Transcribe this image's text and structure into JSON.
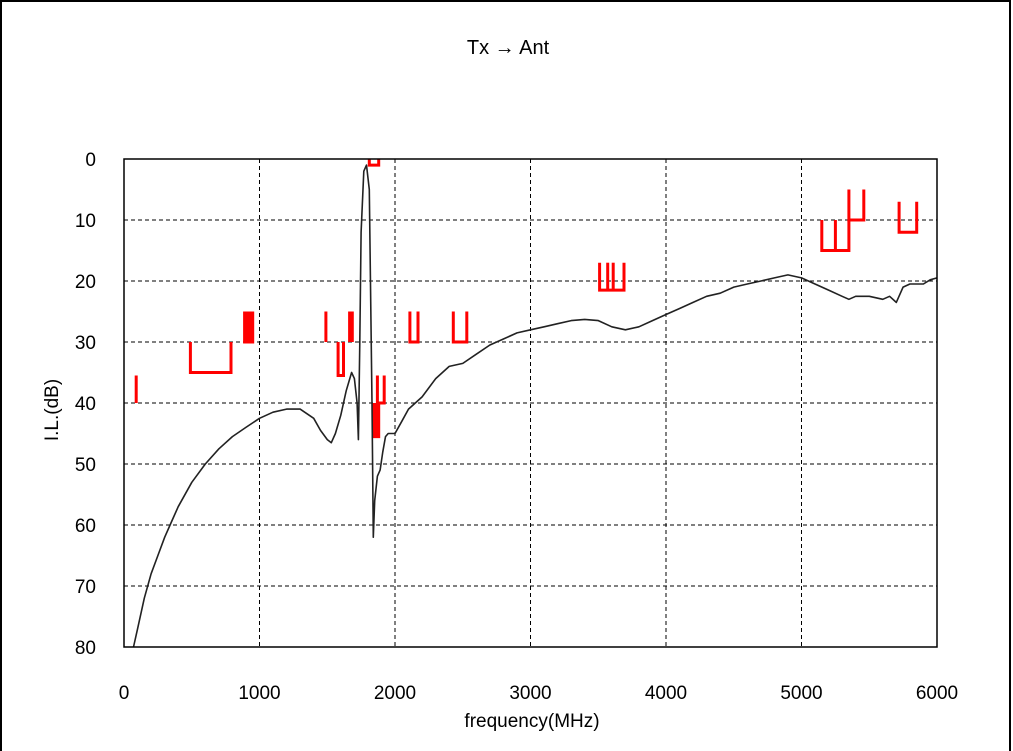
{
  "chart_data": {
    "type": "line",
    "title": "Tx → Ant",
    "xlabel": "frequency(MHz)",
    "ylabel": "I.L.(dB)",
    "xlim": [
      0,
      6000
    ],
    "ylim": [
      0,
      80
    ],
    "y_inverted": true,
    "grid": true,
    "grid_style": "dashed",
    "x_ticks": [
      "0",
      "1000",
      "2000",
      "3000",
      "4000",
      "5000",
      "6000"
    ],
    "y_ticks": [
      "0",
      "10",
      "20",
      "30",
      "40",
      "50",
      "60",
      "70",
      "80"
    ],
    "x_tick_values": [
      0,
      1000,
      2000,
      3000,
      4000,
      5000,
      6000
    ],
    "y_tick_values": [
      0,
      10,
      20,
      30,
      40,
      50,
      60,
      70,
      80
    ],
    "series": [
      {
        "color": "#222222",
        "points": [
          [
            70,
            80
          ],
          [
            100,
            77
          ],
          [
            150,
            72
          ],
          [
            200,
            68
          ],
          [
            250,
            65
          ],
          [
            300,
            62
          ],
          [
            350,
            59.5
          ],
          [
            400,
            57
          ],
          [
            500,
            53
          ],
          [
            600,
            50
          ],
          [
            700,
            47.5
          ],
          [
            800,
            45.5
          ],
          [
            900,
            44
          ],
          [
            1000,
            42.5
          ],
          [
            1100,
            41.5
          ],
          [
            1200,
            41
          ],
          [
            1300,
            41
          ],
          [
            1400,
            42.5
          ],
          [
            1450,
            44.5
          ],
          [
            1500,
            46
          ],
          [
            1530,
            46.5
          ],
          [
            1560,
            45
          ],
          [
            1600,
            42
          ],
          [
            1640,
            38
          ],
          [
            1680,
            35
          ],
          [
            1700,
            36
          ],
          [
            1720,
            40
          ],
          [
            1730,
            46
          ],
          [
            1740,
            30
          ],
          [
            1750,
            12
          ],
          [
            1770,
            2
          ],
          [
            1790,
            1
          ],
          [
            1810,
            5
          ],
          [
            1830,
            40
          ],
          [
            1840,
            62
          ],
          [
            1850,
            56
          ],
          [
            1870,
            52
          ],
          [
            1890,
            51
          ],
          [
            1910,
            48
          ],
          [
            1930,
            45.5
          ],
          [
            1950,
            45
          ],
          [
            2000,
            45
          ],
          [
            2050,
            43
          ],
          [
            2100,
            41
          ],
          [
            2200,
            39
          ],
          [
            2300,
            36
          ],
          [
            2400,
            34
          ],
          [
            2500,
            33.5
          ],
          [
            2600,
            32
          ],
          [
            2700,
            30.5
          ],
          [
            2800,
            29.5
          ],
          [
            2900,
            28.5
          ],
          [
            3000,
            28
          ],
          [
            3100,
            27.5
          ],
          [
            3200,
            27
          ],
          [
            3300,
            26.5
          ],
          [
            3400,
            26.3
          ],
          [
            3500,
            26.5
          ],
          [
            3600,
            27.5
          ],
          [
            3700,
            28
          ],
          [
            3800,
            27.5
          ],
          [
            3900,
            26.5
          ],
          [
            4000,
            25.5
          ],
          [
            4100,
            24.5
          ],
          [
            4200,
            23.5
          ],
          [
            4300,
            22.5
          ],
          [
            4400,
            22
          ],
          [
            4500,
            21
          ],
          [
            4600,
            20.5
          ],
          [
            4700,
            20
          ],
          [
            4800,
            19.5
          ],
          [
            4900,
            19
          ],
          [
            5000,
            19.5
          ],
          [
            5100,
            20.5
          ],
          [
            5200,
            21.5
          ],
          [
            5300,
            22.5
          ],
          [
            5350,
            23
          ],
          [
            5400,
            22.5
          ],
          [
            5500,
            22.5
          ],
          [
            5600,
            23
          ],
          [
            5650,
            22.5
          ],
          [
            5700,
            23.5
          ],
          [
            5750,
            21
          ],
          [
            5800,
            20.5
          ],
          [
            5900,
            20.5
          ],
          [
            5950,
            19.8
          ],
          [
            6000,
            19.5
          ]
        ]
      }
    ],
    "spec_markers": {
      "color": "#ff0000",
      "segments": [
        [
          [
            90,
            35.5
          ],
          [
            90,
            40
          ]
        ],
        [
          [
            490,
            30
          ],
          [
            490,
            35
          ],
          [
            790,
            35
          ],
          [
            790,
            30
          ]
        ],
        [
          [
            890,
            25
          ],
          [
            890,
            30
          ],
          [
            950,
            30
          ],
          [
            950,
            25
          ]
        ],
        [
          [
            905,
            25
          ],
          [
            905,
            30
          ]
        ],
        [
          [
            920,
            25
          ],
          [
            920,
            30
          ]
        ],
        [
          [
            935,
            25
          ],
          [
            935,
            30
          ]
        ],
        [
          [
            1490,
            25
          ],
          [
            1490,
            30
          ]
        ],
        [
          [
            1580,
            30
          ],
          [
            1580,
            35.5
          ],
          [
            1620,
            35.5
          ],
          [
            1620,
            30
          ]
        ],
        [
          [
            1665,
            25
          ],
          [
            1665,
            30
          ]
        ],
        [
          [
            1685,
            25
          ],
          [
            1685,
            30
          ]
        ],
        [
          [
            1810,
            0
          ],
          [
            1810,
            1
          ],
          [
            1880,
            1
          ],
          [
            1880,
            0
          ]
        ],
        [
          [
            1840,
            40
          ],
          [
            1840,
            45.5
          ],
          [
            1880,
            45.5
          ],
          [
            1880,
            40
          ]
        ],
        [
          [
            1860,
            40
          ],
          [
            1860,
            45.5
          ]
        ],
        [
          [
            1870,
            35.5
          ],
          [
            1870,
            40
          ],
          [
            1920,
            40
          ],
          [
            1920,
            35.5
          ]
        ],
        [
          [
            2110,
            25
          ],
          [
            2110,
            30
          ],
          [
            2170,
            30
          ],
          [
            2170,
            25
          ]
        ],
        [
          [
            2430,
            25
          ],
          [
            2430,
            30
          ],
          [
            2530,
            30
          ],
          [
            2530,
            25
          ]
        ],
        [
          [
            3510,
            17
          ],
          [
            3510,
            21.5
          ],
          [
            3690,
            21.5
          ],
          [
            3690,
            17
          ]
        ],
        [
          [
            3570,
            17
          ],
          [
            3570,
            21.5
          ]
        ],
        [
          [
            3610,
            17
          ],
          [
            3610,
            21.5
          ]
        ],
        [
          [
            5150,
            10
          ],
          [
            5150,
            15
          ],
          [
            5350,
            15
          ],
          [
            5350,
            10
          ]
        ],
        [
          [
            5250,
            10
          ],
          [
            5250,
            15
          ]
        ],
        [
          [
            5350,
            5
          ],
          [
            5350,
            10
          ],
          [
            5460,
            10
          ],
          [
            5460,
            5
          ]
        ],
        [
          [
            5720,
            7
          ],
          [
            5720,
            12
          ],
          [
            5850,
            12
          ],
          [
            5850,
            7
          ]
        ]
      ]
    }
  }
}
